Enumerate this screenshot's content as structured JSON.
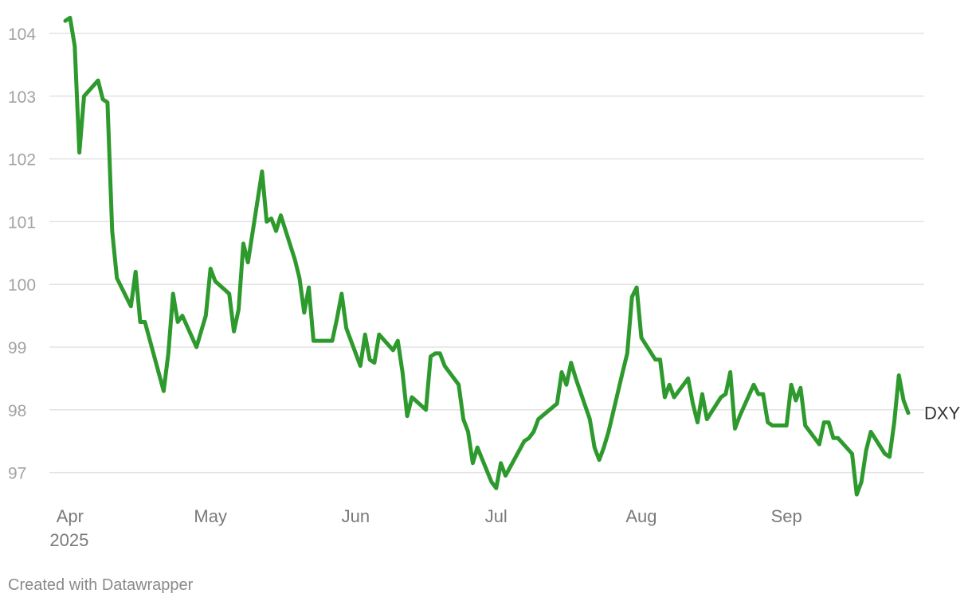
{
  "chart_data": {
    "type": "line",
    "title": "",
    "xlabel": "",
    "ylabel": "",
    "ylim": [
      96.6,
      104.3
    ],
    "yticks": [
      97,
      98,
      99,
      100,
      101,
      102,
      103,
      104
    ],
    "xlim": [
      "2025-03-31",
      "2025-09-27"
    ],
    "xticks": [
      {
        "date": "2025-04-01",
        "label": "Apr",
        "sublabel": "2025"
      },
      {
        "date": "2025-05-01",
        "label": "May"
      },
      {
        "date": "2025-06-01",
        "label": "Jun"
      },
      {
        "date": "2025-07-01",
        "label": "Jul"
      },
      {
        "date": "2025-08-01",
        "label": "Aug"
      },
      {
        "date": "2025-09-01",
        "label": "Sep"
      }
    ],
    "grid": "horizontal",
    "legend": "none",
    "series": [
      {
        "name": "DXY",
        "color": "#2e9a2e",
        "points": [
          [
            "2025-03-31",
            104.2
          ],
          [
            "2025-04-01",
            104.25
          ],
          [
            "2025-04-02",
            103.8
          ],
          [
            "2025-04-03",
            102.1
          ],
          [
            "2025-04-04",
            103.0
          ],
          [
            "2025-04-07",
            103.25
          ],
          [
            "2025-04-08",
            102.95
          ],
          [
            "2025-04-09",
            102.9
          ],
          [
            "2025-04-10",
            100.85
          ],
          [
            "2025-04-11",
            100.1
          ],
          [
            "2025-04-14",
            99.65
          ],
          [
            "2025-04-15",
            100.2
          ],
          [
            "2025-04-16",
            99.4
          ],
          [
            "2025-04-17",
            99.4
          ],
          [
            "2025-04-21",
            98.3
          ],
          [
            "2025-04-22",
            98.9
          ],
          [
            "2025-04-23",
            99.85
          ],
          [
            "2025-04-24",
            99.4
          ],
          [
            "2025-04-25",
            99.5
          ],
          [
            "2025-04-28",
            99.0
          ],
          [
            "2025-04-30",
            99.5
          ],
          [
            "2025-05-01",
            100.25
          ],
          [
            "2025-05-02",
            100.05
          ],
          [
            "2025-05-05",
            99.85
          ],
          [
            "2025-05-06",
            99.25
          ],
          [
            "2025-05-07",
            99.6
          ],
          [
            "2025-05-08",
            100.65
          ],
          [
            "2025-05-09",
            100.35
          ],
          [
            "2025-05-12",
            101.8
          ],
          [
            "2025-05-13",
            101.0
          ],
          [
            "2025-05-14",
            101.05
          ],
          [
            "2025-05-15",
            100.85
          ],
          [
            "2025-05-16",
            101.1
          ],
          [
            "2025-05-19",
            100.4
          ],
          [
            "2025-05-20",
            100.1
          ],
          [
            "2025-05-21",
            99.55
          ],
          [
            "2025-05-22",
            99.95
          ],
          [
            "2025-05-23",
            99.1
          ],
          [
            "2025-05-27",
            99.1
          ],
          [
            "2025-05-28",
            99.45
          ],
          [
            "2025-05-29",
            99.85
          ],
          [
            "2025-05-30",
            99.3
          ],
          [
            "2025-06-02",
            98.7
          ],
          [
            "2025-06-03",
            99.2
          ],
          [
            "2025-06-04",
            98.8
          ],
          [
            "2025-06-05",
            98.75
          ],
          [
            "2025-06-06",
            99.2
          ],
          [
            "2025-06-09",
            98.95
          ],
          [
            "2025-06-10",
            99.1
          ],
          [
            "2025-06-11",
            98.6
          ],
          [
            "2025-06-12",
            97.9
          ],
          [
            "2025-06-13",
            98.2
          ],
          [
            "2025-06-16",
            98.0
          ],
          [
            "2025-06-17",
            98.85
          ],
          [
            "2025-06-18",
            98.9
          ],
          [
            "2025-06-19",
            98.9
          ],
          [
            "2025-06-20",
            98.7
          ],
          [
            "2025-06-23",
            98.4
          ],
          [
            "2025-06-24",
            97.85
          ],
          [
            "2025-06-25",
            97.65
          ],
          [
            "2025-06-26",
            97.15
          ],
          [
            "2025-06-27",
            97.4
          ],
          [
            "2025-06-30",
            96.85
          ],
          [
            "2025-07-01",
            96.75
          ],
          [
            "2025-07-02",
            97.15
          ],
          [
            "2025-07-03",
            96.95
          ],
          [
            "2025-07-07",
            97.5
          ],
          [
            "2025-07-08",
            97.55
          ],
          [
            "2025-07-09",
            97.65
          ],
          [
            "2025-07-10",
            97.85
          ],
          [
            "2025-07-14",
            98.1
          ],
          [
            "2025-07-15",
            98.6
          ],
          [
            "2025-07-16",
            98.4
          ],
          [
            "2025-07-17",
            98.75
          ],
          [
            "2025-07-18",
            98.5
          ],
          [
            "2025-07-21",
            97.85
          ],
          [
            "2025-07-22",
            97.4
          ],
          [
            "2025-07-23",
            97.2
          ],
          [
            "2025-07-24",
            97.4
          ],
          [
            "2025-07-25",
            97.65
          ],
          [
            "2025-07-28",
            98.6
          ],
          [
            "2025-07-29",
            98.9
          ],
          [
            "2025-07-30",
            99.8
          ],
          [
            "2025-07-31",
            99.95
          ],
          [
            "2025-08-01",
            99.15
          ],
          [
            "2025-08-04",
            98.8
          ],
          [
            "2025-08-05",
            98.8
          ],
          [
            "2025-08-06",
            98.2
          ],
          [
            "2025-08-07",
            98.4
          ],
          [
            "2025-08-08",
            98.2
          ],
          [
            "2025-08-11",
            98.5
          ],
          [
            "2025-08-12",
            98.1
          ],
          [
            "2025-08-13",
            97.8
          ],
          [
            "2025-08-14",
            98.25
          ],
          [
            "2025-08-15",
            97.85
          ],
          [
            "2025-08-18",
            98.2
          ],
          [
            "2025-08-19",
            98.25
          ],
          [
            "2025-08-20",
            98.6
          ],
          [
            "2025-08-21",
            97.7
          ],
          [
            "2025-08-22",
            97.9
          ],
          [
            "2025-08-25",
            98.4
          ],
          [
            "2025-08-26",
            98.25
          ],
          [
            "2025-08-27",
            98.25
          ],
          [
            "2025-08-28",
            97.8
          ],
          [
            "2025-08-29",
            97.75
          ],
          [
            "2025-09-01",
            97.75
          ],
          [
            "2025-09-02",
            98.4
          ],
          [
            "2025-09-03",
            98.15
          ],
          [
            "2025-09-04",
            98.35
          ],
          [
            "2025-09-05",
            97.75
          ],
          [
            "2025-09-08",
            97.45
          ],
          [
            "2025-09-09",
            97.8
          ],
          [
            "2025-09-10",
            97.8
          ],
          [
            "2025-09-11",
            97.55
          ],
          [
            "2025-09-12",
            97.55
          ],
          [
            "2025-09-15",
            97.3
          ],
          [
            "2025-09-16",
            96.65
          ],
          [
            "2025-09-17",
            96.85
          ],
          [
            "2025-09-18",
            97.35
          ],
          [
            "2025-09-19",
            97.65
          ],
          [
            "2025-09-22",
            97.3
          ],
          [
            "2025-09-23",
            97.25
          ],
          [
            "2025-09-24",
            97.8
          ],
          [
            "2025-09-25",
            98.55
          ],
          [
            "2025-09-26",
            98.15
          ],
          [
            "2025-09-27",
            97.95
          ]
        ]
      }
    ]
  },
  "footer": {
    "credit": "Created with Datawrapper"
  }
}
